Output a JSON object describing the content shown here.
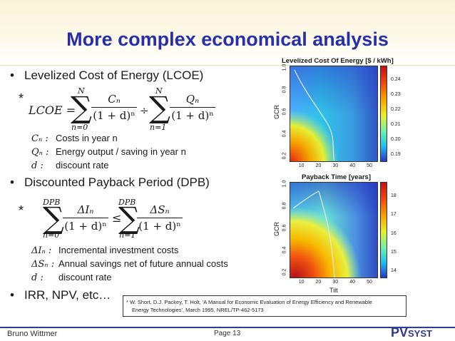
{
  "slide": {
    "title": "More complex economical analysis",
    "footer_author": "Bruno Wittmer",
    "footer_page": "Page 13",
    "logo_main": "PV",
    "logo_sub": "SYST"
  },
  "bullets": [
    {
      "text": "Levelized Cost of Energy (LCOE)"
    },
    {
      "text": "Discounted Payback Period (DPB)"
    },
    {
      "text": "IRR, NPV, etc…"
    }
  ],
  "lcoe": {
    "star": "*",
    "lhs": "LCOE =",
    "sum1_top": "N",
    "sum1_bottom": "n=0",
    "num1": "Cₙ",
    "den1": "(1 + d)ⁿ",
    "divide": "÷",
    "sum2_top": "N",
    "sum2_bottom": "n=1",
    "num2": "Qₙ",
    "den2": "(1 + d)ⁿ",
    "defs": [
      {
        "var": "Cₙ :",
        "text": "Costs in year n"
      },
      {
        "var": "Qₙ :",
        "text": "Energy output / saving in year n"
      },
      {
        "var": "d :",
        "text": "discount rate"
      }
    ]
  },
  "dpb": {
    "star": "*",
    "sum1_top": "DPB",
    "sum1_bottom": "n=0",
    "num1": "ΔIₙ",
    "den1": "(1 + d)ⁿ",
    "leq": "≤",
    "sum2_top": "DPB",
    "sum2_bottom": "n=1",
    "num2": "ΔSₙ",
    "den2": "(1 + d)ⁿ",
    "defs": [
      {
        "var": "ΔIₙ :",
        "text": "Incremental investment costs"
      },
      {
        "var": "ΔSₙ :",
        "text": "Annual savings net of future annual costs"
      },
      {
        "var": "d :",
        "text": "discount rate"
      }
    ]
  },
  "reference": {
    "line1": "* W. Short, D.J. Packey, T. Holt, 'A Manual for Economic Evaluation of Energy Efficiency and Renewable",
    "line2": "Energy Technologies', March 1995, NREL/TP-462-5173"
  },
  "charts": [
    {
      "title": "Levelized Cost Of Energy [$ / kWh]",
      "ylabel": "GCR",
      "xticks": [
        "10",
        "20",
        "30",
        "40",
        "50"
      ],
      "yticks": [
        "0.2",
        "0.4",
        "0.6",
        "0.8",
        "1.0"
      ],
      "colorbar_ticks": [
        "0.24",
        "0.23",
        "0.22",
        "0.21",
        "0.20",
        "0.19"
      ]
    },
    {
      "title": "Payback Time [years]",
      "ylabel": "GCR",
      "xlabel": "Tilt",
      "xticks": [
        "10",
        "20",
        "30",
        "40",
        "50"
      ],
      "yticks": [
        "0.2",
        "0.4",
        "0.6",
        "0.8",
        "1.0"
      ],
      "colorbar_ticks": [
        "18",
        "17",
        "16",
        "15",
        "14"
      ]
    }
  ]
}
